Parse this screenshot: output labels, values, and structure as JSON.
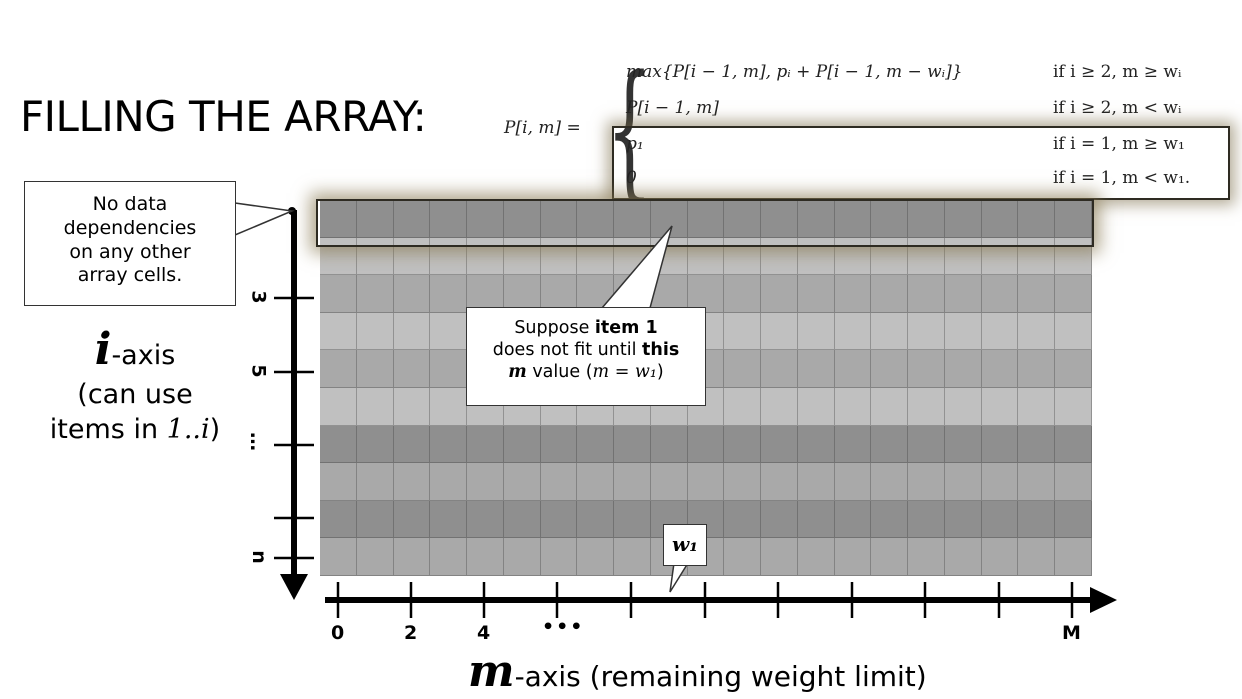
{
  "title": "FILLING THE ARRAY:",
  "recurrence": {
    "lhs": "P[i, m] =",
    "cases": [
      {
        "expr": "max{P[i − 1, m], pᵢ + P[i − 1, m − wᵢ]}",
        "cond": "if i ≥ 2, m ≥ wᵢ"
      },
      {
        "expr": "P[i − 1, m]",
        "cond": "if i ≥ 2, m < wᵢ"
      },
      {
        "expr": "p₁",
        "cond": "if i = 1, m ≥ w₁"
      },
      {
        "expr": "0",
        "cond": "if i = 1, m < w₁."
      }
    ]
  },
  "callouts": {
    "no_data": [
      "No data",
      "dependencies",
      "on any other",
      "array cells."
    ],
    "item1": {
      "line1_pre": "Suppose ",
      "line1_bold": "item 1",
      "line2_pre": "does not fit until ",
      "line2_bold": "this",
      "line3_m": "m",
      "line3_mid": " value (",
      "line3_math": "m = w₁",
      "line3_post": ")"
    },
    "w1": "w₁"
  },
  "i_axis": {
    "letter": "i",
    "suffix": "-axis",
    "line2": "(can use",
    "line3_pre": "items in ",
    "line3_math": "1..i",
    "line3_post": ")",
    "ticks": [
      "3",
      "5",
      "…",
      "n"
    ]
  },
  "m_axis": {
    "letter": "m",
    "suffix": "-axis (remaining weight limit)",
    "ticks": [
      "0",
      "2",
      "4",
      "•••",
      "M"
    ]
  },
  "grid": {
    "rows": 10,
    "cols": 21
  }
}
